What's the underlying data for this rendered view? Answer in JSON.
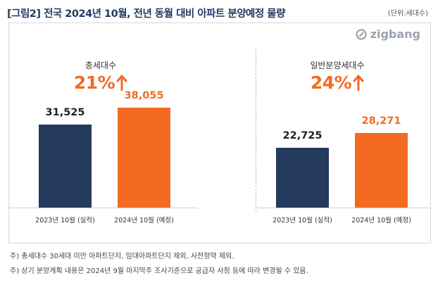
{
  "header": {
    "title": "[그림2] 전국 2024년 10월, 전년 동월 대비 아파트 분양예정 물량",
    "unit": "(단위:세대수)"
  },
  "logo": {
    "text": "zigbang",
    "icon": "zigbang-logo-icon"
  },
  "colors": {
    "previous": "#243a5e",
    "current": "#f26b21",
    "growth": "#f26b21"
  },
  "chart_data": [
    {
      "type": "bar",
      "title": "총세대수",
      "growth": "21%",
      "categories": [
        "2023년 10월 (실적)",
        "2024년 10월 (예정)"
      ],
      "values": [
        31525,
        38055
      ],
      "value_labels": [
        "31,525",
        "38,055"
      ],
      "ylim": [
        0,
        70000
      ]
    },
    {
      "type": "bar",
      "title": "일반분양세대수",
      "growth": "24%",
      "categories": [
        "2023년 10월 (실적)",
        "2024년 10월 (예정)"
      ],
      "values": [
        22725,
        28271
      ],
      "value_labels": [
        "22,725",
        "28,271"
      ],
      "ylim": [
        0,
        70000
      ]
    }
  ],
  "notes": [
    "주) 총세대수 30세대 미만 아파트단지, 임대아파트단지 제외, 사전청약 제외.",
    "주) 상기 분양계획 내용은 2024년 9월 마지막주  조사기준으로 공급자 사정 등에 따라 변경될 수 있음."
  ]
}
